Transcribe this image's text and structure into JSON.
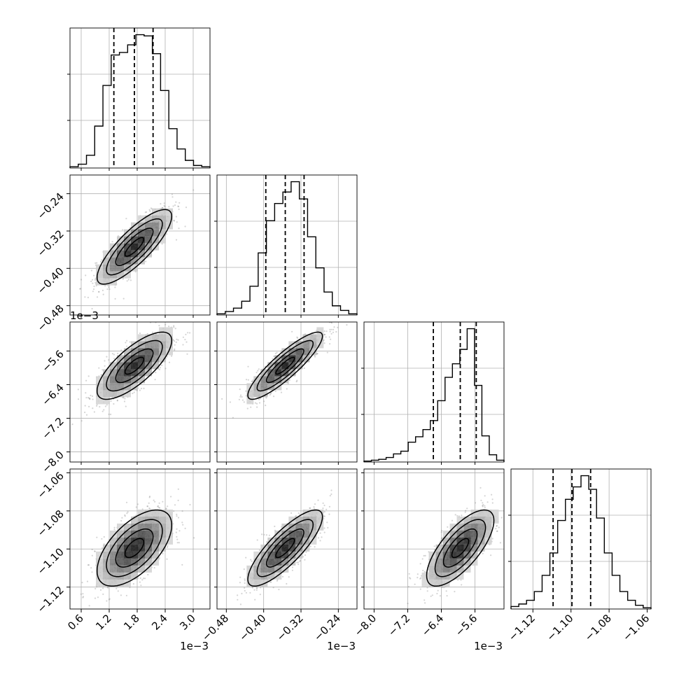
{
  "chart_data": {
    "type": "corner",
    "grid": true,
    "parameters": [
      {
        "range": [
          0.36,
          3.36
        ],
        "ticks": [
          0.6,
          1.2,
          1.8,
          2.4,
          3.0
        ],
        "tick_labels": [
          "0.6",
          "1.2",
          "1.8",
          "2.4",
          "3.0"
        ],
        "offset_label": "1e−3",
        "quantiles": [
          1.3,
          1.74,
          2.14
        ],
        "mean": 1.74,
        "sd": 0.4,
        "hist_counts": [
          1,
          3,
          10,
          33,
          65,
          89,
          91,
          97,
          105,
          104,
          90,
          61,
          31,
          15,
          6,
          2,
          1
        ]
      },
      {
        "range": [
          -0.5,
          -0.2
        ],
        "ticks": [
          -0.48,
          -0.4,
          -0.32,
          -0.24
        ],
        "tick_labels": [
          "−0.48",
          "−0.40",
          "−0.32",
          "−0.24"
        ],
        "offset_label": "1e−3",
        "quantiles": [
          -0.3954,
          -0.3537,
          -0.3134
        ],
        "mean": -0.354,
        "sd": 0.04,
        "hist_counts": [
          1,
          3,
          6,
          12,
          25,
          54,
          82,
          97,
          107,
          116,
          101,
          68,
          41,
          20,
          8,
          4,
          1
        ]
      },
      {
        "range": [
          -8.24,
          -4.91
        ],
        "ticks": [
          -8.0,
          -7.2,
          -6.4,
          -5.6
        ],
        "tick_labels": [
          "−8.0",
          "−7.2",
          "−6.4",
          "−5.6"
        ],
        "offset_label": "1e−3",
        "quantiles": [
          -6.59,
          -5.95,
          -5.57
        ],
        "mean": -5.95,
        "sd": 0.4,
        "hist_counts": [
          1,
          2,
          3,
          5,
          9,
          12,
          22,
          28,
          36,
          46,
          68,
          94,
          109,
          125,
          148,
          85,
          29,
          8,
          2
        ]
      },
      {
        "range": [
          -1.1315,
          -1.058
        ],
        "ticks": [
          -1.12,
          -1.1,
          -1.08,
          -1.06
        ],
        "tick_labels": [
          "−1.12",
          "−1.10",
          "−1.08",
          "−1.06"
        ],
        "offset_label": "",
        "quantiles": [
          -1.1094,
          -1.0995,
          -1.0897
        ],
        "mean": -1.0995,
        "sd": 0.01,
        "hist_counts": [
          2,
          4,
          7,
          14,
          27,
          45,
          71,
          88,
          98,
          107,
          96,
          73,
          45,
          27,
          14,
          7,
          3,
          1
        ]
      }
    ],
    "pairs": [
      {
        "row": 1,
        "col": 0,
        "mean": [
          1.74,
          -0.354
        ],
        "sd": [
          0.4,
          0.04
        ],
        "rho": 0.82
      },
      {
        "row": 2,
        "col": 0,
        "mean": [
          1.74,
          -5.95
        ],
        "sd": [
          0.4,
          0.4
        ],
        "rho": 0.75
      },
      {
        "row": 2,
        "col": 1,
        "mean": [
          -0.354,
          -5.95
        ],
        "sd": [
          0.04,
          0.4
        ],
        "rho": 0.88
      },
      {
        "row": 3,
        "col": 0,
        "mean": [
          1.74,
          -1.0995
        ],
        "sd": [
          0.4,
          0.01
        ],
        "rho": 0.6
      },
      {
        "row": 3,
        "col": 1,
        "mean": [
          -0.354,
          -1.0995
        ],
        "sd": [
          0.04,
          0.01
        ],
        "rho": 0.82
      },
      {
        "row": 3,
        "col": 2,
        "mean": [
          -5.95,
          -1.0995
        ],
        "sd": [
          0.4,
          0.01
        ],
        "rho": 0.72
      }
    ],
    "contour_levels_sigma": [
      0.5,
      1.0,
      1.5,
      2.0
    ]
  }
}
